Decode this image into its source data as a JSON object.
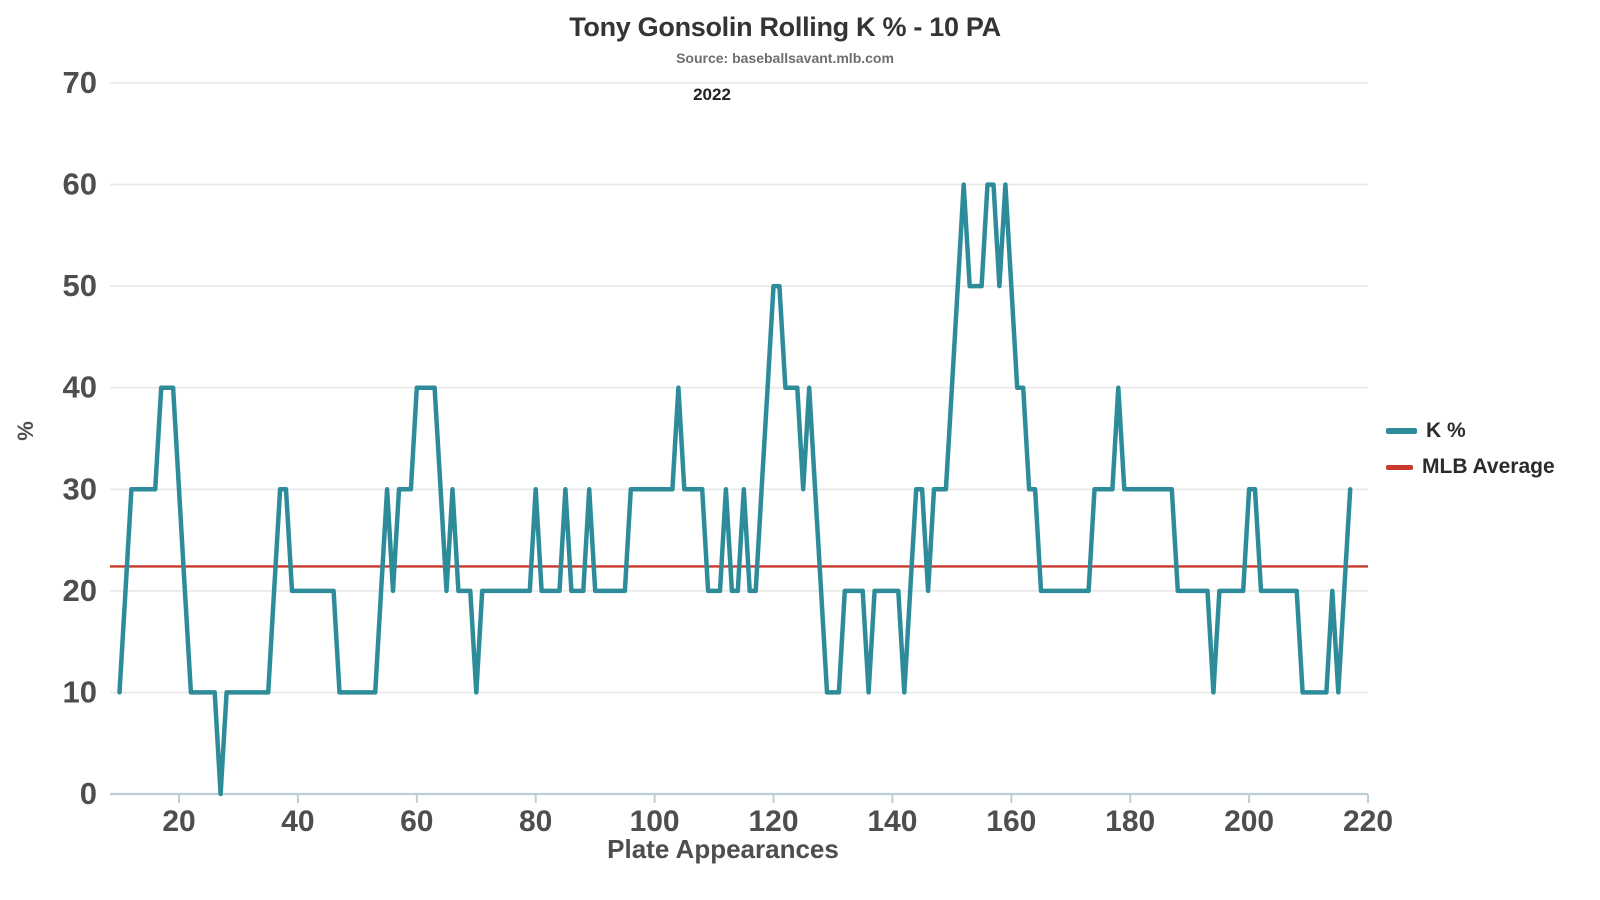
{
  "chart_data": {
    "type": "line",
    "title": "Tony Gonsolin Rolling K % - 10 PA",
    "subtitle": "Source: baseballsavant.mlb.com",
    "annotation": "2022",
    "xlabel": "Plate Appearances",
    "ylabel": "%",
    "xlim": [
      6,
      223
    ],
    "ylim": [
      0,
      70
    ],
    "x_ticks": [
      20,
      40,
      60,
      80,
      100,
      120,
      140,
      160,
      180,
      200,
      220
    ],
    "y_ticks": [
      0,
      10,
      20,
      30,
      40,
      50,
      60,
      70
    ],
    "grid": true,
    "legend_position": "right",
    "colors": {
      "k_line": "#2E8C9A",
      "mlb_average": "#C9392B",
      "grid": "#e8e8e8",
      "axis": "#bccfd6",
      "tick_text": "#4e4e4e",
      "background": "#ffffff"
    },
    "series": [
      {
        "name": "K %",
        "kind": "rolling",
        "x_start": 10,
        "x_step": 1,
        "values": [
          10,
          20,
          30,
          30,
          30,
          30,
          30,
          40,
          40,
          40,
          30,
          20,
          10,
          10,
          10,
          10,
          10,
          0,
          10,
          10,
          10,
          10,
          10,
          10,
          10,
          10,
          20,
          30,
          30,
          20,
          20,
          20,
          20,
          20,
          20,
          20,
          20,
          10,
          10,
          10,
          10,
          10,
          10,
          10,
          20,
          30,
          20,
          30,
          30,
          30,
          40,
          40,
          40,
          40,
          30,
          20,
          30,
          20,
          20,
          20,
          10,
          20,
          20,
          20,
          20,
          20,
          20,
          20,
          20,
          20,
          30,
          20,
          20,
          20,
          20,
          30,
          20,
          20,
          20,
          30,
          20,
          20,
          20,
          20,
          20,
          20,
          30,
          30,
          30,
          30,
          30,
          30,
          30,
          30,
          40,
          30,
          30,
          30,
          30,
          20,
          20,
          20,
          30,
          20,
          20,
          30,
          20,
          20,
          30,
          40,
          50,
          50,
          40,
          40,
          40,
          30,
          40,
          30,
          20,
          10,
          10,
          10,
          20,
          20,
          20,
          20,
          10,
          20,
          20,
          20,
          20,
          20,
          10,
          20,
          30,
          30,
          20,
          30,
          30,
          30,
          40,
          50,
          60,
          50,
          50,
          50,
          60,
          60,
          50,
          60,
          50,
          40,
          40,
          30,
          30,
          20,
          20,
          20,
          20,
          20,
          20,
          20,
          20,
          20,
          30,
          30,
          30,
          30,
          40,
          30,
          30,
          30,
          30,
          30,
          30,
          30,
          30,
          30,
          20,
          20,
          20,
          20,
          20,
          20,
          10,
          20,
          20,
          20,
          20,
          20,
          30,
          30,
          20,
          20,
          20,
          20,
          20,
          20,
          20,
          10,
          10,
          10,
          10,
          10,
          20,
          10,
          20,
          30
        ]
      },
      {
        "name": "MLB Average",
        "kind": "hline",
        "value": 22.4
      }
    ]
  }
}
